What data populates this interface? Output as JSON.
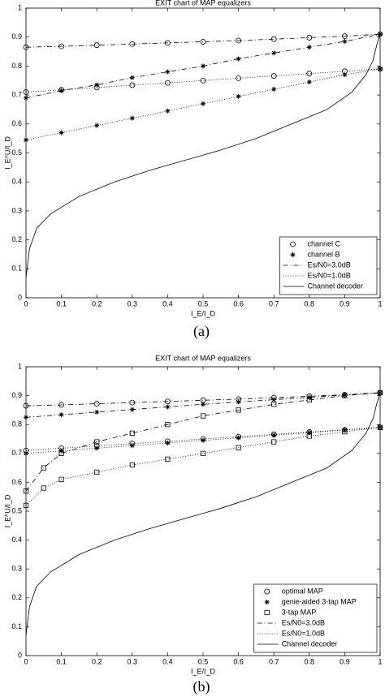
{
  "chart_data": [
    {
      "type": "line",
      "title": "EXIT chart of MAP equalizers",
      "xlabel": "I_E/I_D",
      "ylabel": "I_E^U/I_D",
      "caption": "(a)",
      "xlim": [
        0,
        1
      ],
      "ylim": [
        0,
        1
      ],
      "xticks": [
        0,
        0.1,
        0.2,
        0.3,
        0.4,
        0.5,
        0.6,
        0.7,
        0.8,
        0.9,
        1
      ],
      "yticks": [
        0,
        0.1,
        0.2,
        0.3,
        0.4,
        0.5,
        0.6,
        0.7,
        0.8,
        0.9,
        1
      ],
      "legend_position": "lower right",
      "legend": [
        {
          "label": "channel C",
          "marker": "circle"
        },
        {
          "label": "channel B",
          "marker": "star"
        },
        {
          "label": "Es/N0=3.0dB",
          "dash": "dashdot"
        },
        {
          "label": "Es/N0=1.0dB",
          "dash": "dotted"
        },
        {
          "label": "Channel decoder",
          "dash": "solid"
        }
      ],
      "series": [
        {
          "marker": "circle",
          "dash": "dashdot",
          "x": [
            0,
            0.1,
            0.2,
            0.3,
            0.4,
            0.5,
            0.6,
            0.7,
            0.8,
            0.9,
            1
          ],
          "values": [
            0.865,
            0.868,
            0.872,
            0.876,
            0.88,
            0.884,
            0.888,
            0.893,
            0.898,
            0.903,
            0.91
          ]
        },
        {
          "marker": "star",
          "dash": "dashdot",
          "x": [
            0,
            0.1,
            0.2,
            0.3,
            0.4,
            0.5,
            0.6,
            0.7,
            0.8,
            0.9,
            1
          ],
          "values": [
            0.69,
            0.715,
            0.735,
            0.76,
            0.78,
            0.8,
            0.825,
            0.845,
            0.865,
            0.885,
            0.91
          ]
        },
        {
          "marker": "circle",
          "dash": "dotted",
          "x": [
            0,
            0.1,
            0.2,
            0.3,
            0.4,
            0.5,
            0.6,
            0.7,
            0.8,
            0.9,
            1
          ],
          "values": [
            0.71,
            0.718,
            0.726,
            0.734,
            0.742,
            0.75,
            0.758,
            0.766,
            0.774,
            0.782,
            0.79
          ]
        },
        {
          "marker": "star",
          "dash": "dotted",
          "x": [
            0,
            0.1,
            0.2,
            0.3,
            0.4,
            0.5,
            0.6,
            0.7,
            0.8,
            0.9,
            1
          ],
          "values": [
            0.545,
            0.57,
            0.595,
            0.62,
            0.645,
            0.67,
            0.695,
            0.72,
            0.745,
            0.77,
            0.79
          ]
        },
        {
          "dash": "solid",
          "x": [
            0,
            0.01,
            0.03,
            0.07,
            0.15,
            0.25,
            0.35,
            0.45,
            0.55,
            0.65,
            0.75,
            0.85,
            0.92,
            0.96,
            0.98,
            0.99,
            1
          ],
          "values": [
            0.07,
            0.17,
            0.24,
            0.29,
            0.35,
            0.4,
            0.44,
            0.475,
            0.51,
            0.55,
            0.6,
            0.65,
            0.71,
            0.77,
            0.82,
            0.87,
            0.91
          ]
        }
      ]
    },
    {
      "type": "line",
      "title": "EXIT chart of MAP equalizers",
      "xlabel": "I_E/I_D",
      "ylabel": "I_E^U/I_D",
      "caption": "(b)",
      "xlim": [
        0,
        1
      ],
      "ylim": [
        0,
        1
      ],
      "xticks": [
        0,
        0.1,
        0.2,
        0.3,
        0.4,
        0.5,
        0.6,
        0.7,
        0.8,
        0.9,
        1
      ],
      "yticks": [
        0,
        0.1,
        0.2,
        0.3,
        0.4,
        0.5,
        0.6,
        0.7,
        0.8,
        0.9,
        1
      ],
      "legend_position": "lower right",
      "legend": [
        {
          "label": "optimal MAP",
          "marker": "circle"
        },
        {
          "label": "genie-aided 3-tap MAP",
          "marker": "star"
        },
        {
          "label": "3-tap MAP",
          "marker": "square"
        },
        {
          "label": "Es/N0=3.0dB",
          "dash": "dashdot"
        },
        {
          "label": "Es/N0=1.0dB",
          "dash": "dotted"
        },
        {
          "label": "Channel decoder",
          "dash": "solid"
        }
      ],
      "series": [
        {
          "marker": "circle",
          "dash": "dashdot",
          "x": [
            0,
            0.1,
            0.2,
            0.3,
            0.4,
            0.5,
            0.6,
            0.7,
            0.8,
            0.9,
            1
          ],
          "values": [
            0.865,
            0.868,
            0.872,
            0.876,
            0.88,
            0.884,
            0.888,
            0.893,
            0.898,
            0.903,
            0.91
          ]
        },
        {
          "marker": "star",
          "dash": "dashdot",
          "x": [
            0,
            0.1,
            0.2,
            0.3,
            0.4,
            0.5,
            0.6,
            0.7,
            0.8,
            0.9,
            1
          ],
          "values": [
            0.825,
            0.834,
            0.843,
            0.852,
            0.861,
            0.87,
            0.878,
            0.886,
            0.894,
            0.902,
            0.91
          ]
        },
        {
          "marker": "square",
          "dash": "dashdot",
          "x": [
            0,
            0.05,
            0.1,
            0.2,
            0.3,
            0.4,
            0.5,
            0.6,
            0.7,
            0.8,
            0.9,
            1
          ],
          "values": [
            0.57,
            0.65,
            0.7,
            0.74,
            0.77,
            0.8,
            0.83,
            0.85,
            0.87,
            0.885,
            0.9,
            0.91
          ]
        },
        {
          "marker": "circle",
          "dash": "dotted",
          "x": [
            0,
            0.1,
            0.2,
            0.3,
            0.4,
            0.5,
            0.6,
            0.7,
            0.8,
            0.9,
            1
          ],
          "values": [
            0.71,
            0.718,
            0.726,
            0.734,
            0.742,
            0.75,
            0.758,
            0.766,
            0.774,
            0.782,
            0.79
          ]
        },
        {
          "marker": "star",
          "dash": "dotted",
          "x": [
            0,
            0.1,
            0.2,
            0.3,
            0.4,
            0.5,
            0.6,
            0.7,
            0.8,
            0.9,
            1
          ],
          "values": [
            0.7,
            0.709,
            0.718,
            0.727,
            0.736,
            0.745,
            0.754,
            0.763,
            0.772,
            0.781,
            0.79
          ]
        },
        {
          "marker": "square",
          "dash": "dotted",
          "x": [
            0,
            0.05,
            0.1,
            0.2,
            0.3,
            0.4,
            0.5,
            0.6,
            0.7,
            0.8,
            0.9,
            1
          ],
          "values": [
            0.52,
            0.58,
            0.61,
            0.635,
            0.66,
            0.68,
            0.7,
            0.72,
            0.74,
            0.76,
            0.775,
            0.79
          ]
        },
        {
          "dash": "solid",
          "x": [
            0,
            0.01,
            0.03,
            0.07,
            0.15,
            0.25,
            0.35,
            0.45,
            0.55,
            0.65,
            0.75,
            0.85,
            0.92,
            0.96,
            0.98,
            0.99,
            1
          ],
          "values": [
            0.07,
            0.17,
            0.24,
            0.29,
            0.35,
            0.4,
            0.44,
            0.475,
            0.51,
            0.55,
            0.6,
            0.65,
            0.71,
            0.77,
            0.82,
            0.87,
            0.91
          ]
        }
      ]
    }
  ]
}
